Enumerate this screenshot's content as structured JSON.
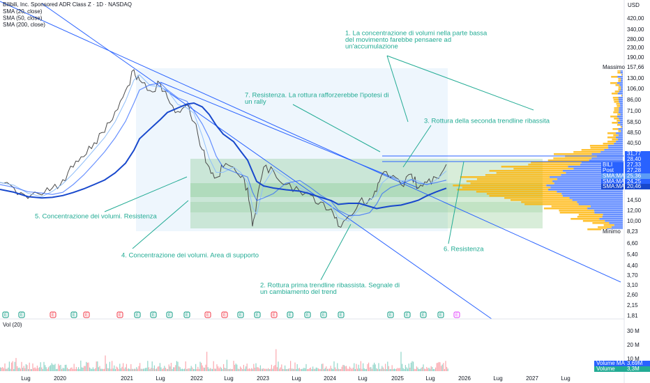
{
  "legend": {
    "title": "Bilibili, Inc. Sponsored ADR Class Z · 1D · NASDAQ",
    "indicators": [
      "SMA (20, close)",
      "SMA (50, close)",
      "SMA (200, close)"
    ],
    "volume": "Vol (20)"
  },
  "price_axis": {
    "currency": "USD",
    "labels": [
      "420,00",
      "340,00",
      "280,00",
      "230,00",
      "190,00",
      "130,00",
      "106,00",
      "86,00",
      "71,00",
      "58,50",
      "48,50",
      "40,50",
      "14,50",
      "12,00",
      "10,00",
      "6,60",
      "5,40",
      "4,40",
      "3,70",
      "3,10",
      "2,60",
      "2,15",
      "1,81"
    ]
  },
  "price_tags": [
    {
      "name": "Massimo",
      "value": "157,66",
      "color": "#ffffff"
    },
    {
      "name": "",
      "value": "31,77",
      "color": "#2962ff"
    },
    {
      "name": "",
      "value": "28,40",
      "color": "#2962ff"
    },
    {
      "name": "BILI",
      "value": "27,33",
      "color": "#2962ff"
    },
    {
      "name": "Post",
      "value": "27,28",
      "color": "#2962ff"
    },
    {
      "name": "SMA:MA",
      "value": "25,36",
      "color": "#5b9cf6"
    },
    {
      "name": "SMA:MA",
      "value": "24,25",
      "color": "#2962ff"
    },
    {
      "name": "SMA:MA",
      "value": "20,46",
      "color": "#1848cc"
    },
    {
      "name": "Minimo",
      "value": "8,23",
      "color": "#ffffff"
    }
  ],
  "volume_axis": {
    "labels": [
      "30 M",
      "20 M",
      "10 M"
    ],
    "tags": [
      {
        "name": "Volume MA",
        "value": "3,69M"
      },
      {
        "name": "Volume",
        "value": "3,3M"
      }
    ]
  },
  "time_axis": [
    "Lug",
    "2020",
    "2021",
    "Lug",
    "2022",
    "Lug",
    "2023",
    "Lug",
    "2024",
    "Lug",
    "2025",
    "Lug",
    "2026",
    "Lug",
    "2027",
    "Lug"
  ],
  "earnings": [
    {
      "label": "E",
      "color": "#089981"
    },
    {
      "label": "E",
      "color": "#089981"
    },
    {
      "label": "E",
      "color": "#f23645"
    },
    {
      "label": "E",
      "color": "#089981"
    },
    {
      "label": "E",
      "color": "#f23645"
    },
    {
      "label": "E",
      "color": "#f23645"
    },
    {
      "label": "E",
      "color": "#089981"
    },
    {
      "label": "E",
      "color": "#089981"
    },
    {
      "label": "E",
      "color": "#089981"
    },
    {
      "label": "E",
      "color": "#089981"
    },
    {
      "label": "E",
      "color": "#f23645"
    },
    {
      "label": "E",
      "color": "#f23645"
    },
    {
      "label": "E",
      "color": "#089981"
    },
    {
      "label": "E",
      "color": "#089981"
    },
    {
      "label": "E",
      "color": "#f23645"
    },
    {
      "label": "E",
      "color": "#089981"
    },
    {
      "label": "E",
      "color": "#089981"
    },
    {
      "label": "E",
      "color": "#089981"
    },
    {
      "label": "E",
      "color": "#089981"
    },
    {
      "label": "E",
      "color": "#089981"
    },
    {
      "label": "E",
      "color": "#089981"
    },
    {
      "label": "E",
      "color": "#089981"
    },
    {
      "label": "E",
      "color": "#089981"
    },
    {
      "label": "E",
      "color": "#e040fb"
    }
  ],
  "annotations": [
    {
      "lines": [
        "1. La concentrazione di volumi nella parte bassa",
        "del movimento farebbe pensaere ad",
        "un'accumulazione"
      ]
    },
    {
      "lines": [
        "7. Resistenza. La rottura rafforzerebbe l'ipotesi di",
        "un rally"
      ]
    },
    {
      "lines": [
        "3. Rottura della seconda trendline ribassita"
      ]
    },
    {
      "lines": [
        "5. Concentrazione dei volumi. Resistenza"
      ]
    },
    {
      "lines": [
        "4. Concentrazione dei volumi. Area di supporto"
      ]
    },
    {
      "lines": [
        "2. Rottura prima trendline ribassista. Segnale di",
        "un cambiamento del trend"
      ]
    },
    {
      "lines": [
        "6. Resistenza"
      ]
    }
  ]
}
